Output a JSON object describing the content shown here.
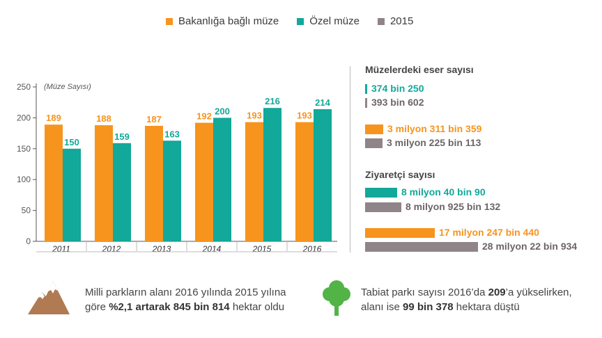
{
  "legend": [
    {
      "label": "Bakanlığa bağlı müze",
      "color": "#f7941d"
    },
    {
      "label": "Özel müze",
      "color": "#12a89a"
    },
    {
      "label": "2015",
      "color": "#8f8487"
    }
  ],
  "chart_data": {
    "type": "bar",
    "title": "",
    "ylabel": "(Müze Sayısı)",
    "xlabel": "",
    "categories": [
      "2011",
      "2012",
      "2013",
      "2014",
      "2015",
      "2016"
    ],
    "series": [
      {
        "name": "Bakanlığa bağlı müze",
        "color": "#f7941d",
        "values": [
          189,
          188,
          187,
          192,
          193,
          193
        ]
      },
      {
        "name": "Özel müze",
        "color": "#12a89a",
        "values": [
          150,
          159,
          163,
          200,
          216,
          214
        ]
      }
    ],
    "ylim": [
      0,
      250
    ],
    "yticks": [
      0,
      50,
      100,
      150,
      200,
      250
    ],
    "grid": false
  },
  "artifacts": {
    "title": "Müzelerdeki eser sayısı",
    "items": [
      {
        "label": "374 bin 250",
        "value": 374250,
        "color": "#12a89a",
        "text_color": "#12a89a"
      },
      {
        "label": "393 bin 602",
        "value": 393602,
        "color": "#8f8487",
        "text_color": "#6d6466"
      },
      {
        "label": "3 milyon 311 bin 359",
        "value": 3311359,
        "color": "#f7941d",
        "text_color": "#f7941d"
      },
      {
        "label": "3 milyon 225 bin 113",
        "value": 3225113,
        "color": "#8f8487",
        "text_color": "#6d6466"
      }
    ]
  },
  "visitors": {
    "title": "Ziyaretçi sayısı",
    "items": [
      {
        "label": "8 milyon 40 bin 90",
        "value": 8040090,
        "color": "#12a89a",
        "text_color": "#12a89a"
      },
      {
        "label": "8 milyon 925 bin 132",
        "value": 8925132,
        "color": "#8f8487",
        "text_color": "#6d6466"
      },
      {
        "label": "17 milyon 247 bin 440",
        "value": 17247440,
        "color": "#f7941d",
        "text_color": "#f7941d"
      },
      {
        "label": "28 milyon 22 bin 934",
        "value": 28022934,
        "color": "#8f8487",
        "text_color": "#6d6466"
      }
    ]
  },
  "notes": {
    "parks": {
      "t1": "Milli parkların alanı 2016 yılında 2015 yılına",
      "t2": "göre ",
      "b1": "%2,1 artarak 845 bin 814",
      "t3": " hektar oldu"
    },
    "nature": {
      "t1": "Tabiat parkı sayısı 2016’da ",
      "b1": "209",
      "t2": "’a yükselirken,",
      "t3": "alanı ise ",
      "b2": "99 bin 378",
      "t4": " hektara düştü"
    }
  },
  "icons": {
    "mountain": "mountain-icon",
    "tree": "tree-icon"
  }
}
